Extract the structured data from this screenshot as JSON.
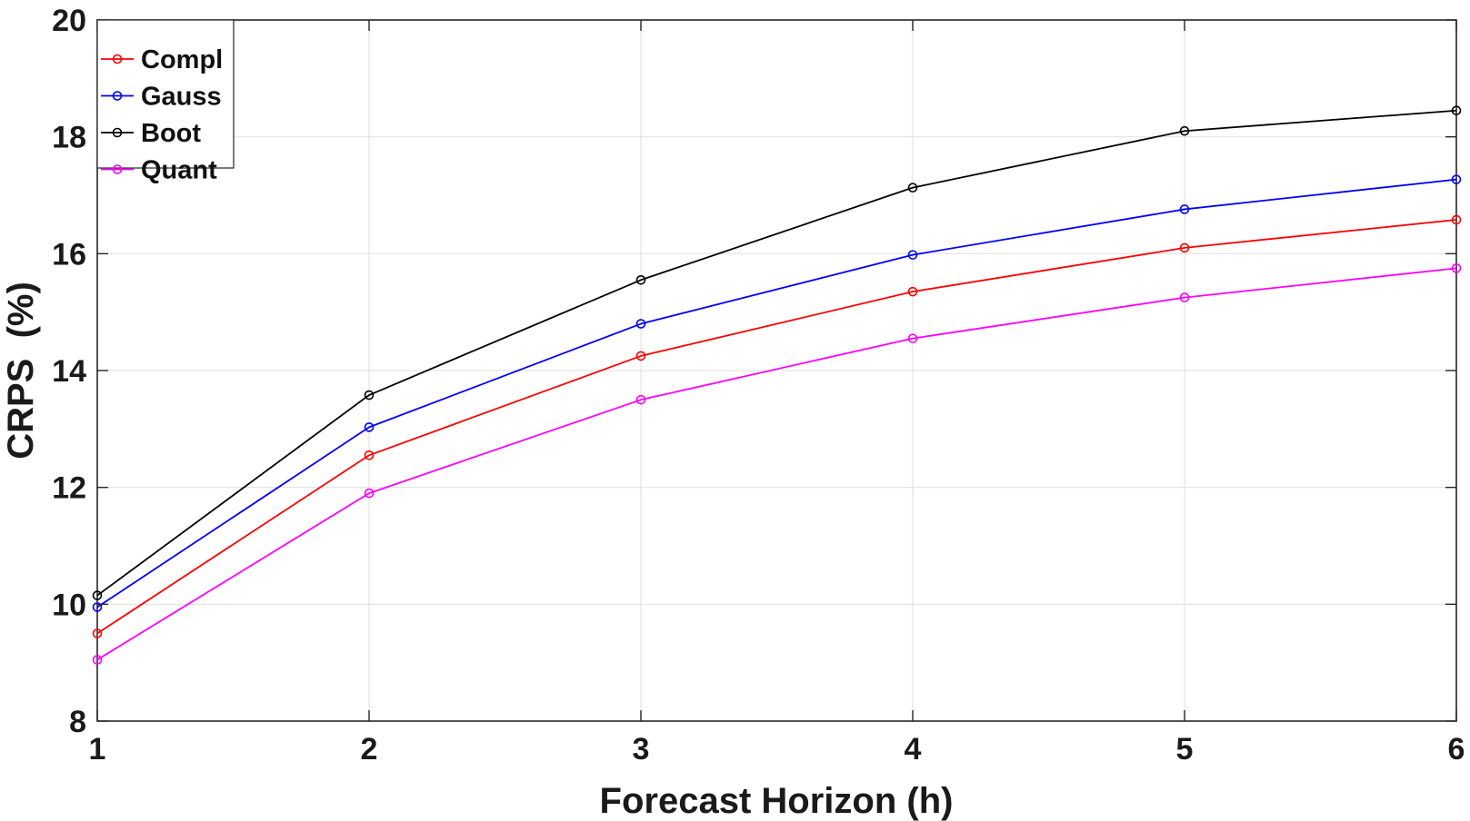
{
  "chart_data": {
    "type": "line",
    "title": "",
    "xlabel": "Forecast Horizon (h)",
    "ylabel": "CRPS  (%)",
    "x": [
      1,
      2,
      3,
      4,
      5,
      6
    ],
    "xlim": [
      1,
      6
    ],
    "ylim": [
      8,
      20
    ],
    "xticks": [
      "1",
      "2",
      "3",
      "4",
      "5",
      "6"
    ],
    "yticks": [
      "8",
      "10",
      "12",
      "14",
      "16",
      "18",
      "20"
    ],
    "grid": true,
    "legend_position": "top-left",
    "marker": "open-circle",
    "series": [
      {
        "name": "Compl",
        "color": "#ff0000",
        "values": [
          9.5,
          12.55,
          14.25,
          15.35,
          16.1,
          16.58
        ]
      },
      {
        "name": "Gauss",
        "color": "#0000ff",
        "values": [
          9.95,
          13.03,
          14.8,
          15.98,
          16.76,
          17.27
        ]
      },
      {
        "name": "Boot",
        "color": "#000000",
        "values": [
          10.15,
          13.58,
          15.55,
          17.13,
          18.1,
          18.45
        ]
      },
      {
        "name": "Quant",
        "color": "#ff00ff",
        "values": [
          9.05,
          11.9,
          13.5,
          14.55,
          15.25,
          15.75
        ]
      }
    ]
  }
}
